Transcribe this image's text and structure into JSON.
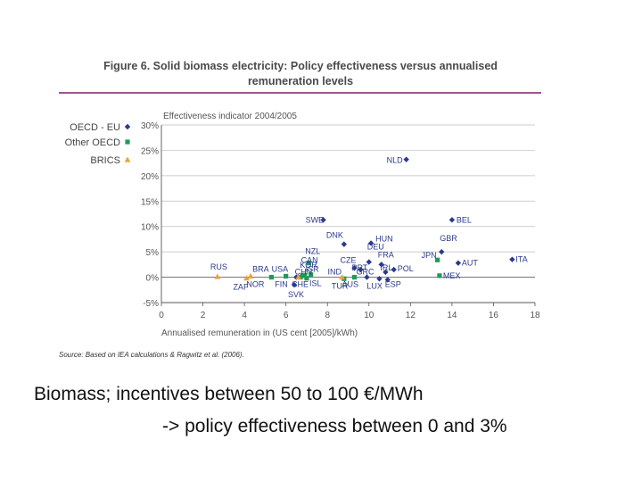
{
  "chart_data": {
    "type": "scatter",
    "title": "Figure 6. Solid biomass electricity: Policy effectiveness versus annualised remuneration levels",
    "title_lines": [
      "Figure 6. Solid biomass electricity: Policy effectiveness versus annualised",
      "remuneration levels"
    ],
    "ylabel": "Effectiveness indicator 2004/2005",
    "xlabel": "Annualised remuneration in (US cent [2005]/kWh)",
    "xlim": [
      0,
      18
    ],
    "ylim": [
      -5,
      30
    ],
    "x_ticks": [
      0,
      2,
      4,
      6,
      8,
      10,
      12,
      14,
      16,
      18
    ],
    "y_ticks": [
      -5,
      0,
      5,
      10,
      15,
      20,
      25,
      30
    ],
    "y_tick_labels": [
      "-5%",
      "0%",
      "5%",
      "10%",
      "15%",
      "20%",
      "25%",
      "30%"
    ],
    "gridlines": "horizontal",
    "legend_position": "left",
    "source": "Source: Based on IEA calculations & Ragwitz et al. (2006).",
    "series": [
      {
        "name": "OECD - EU",
        "color": "#2b3a8c",
        "marker": "diamond",
        "points": [
          {
            "label": "NLD",
            "x": 11.8,
            "y": 23.2
          },
          {
            "label": "SWE",
            "x": 7.8,
            "y": 11.3
          },
          {
            "label": "BEL",
            "x": 14.0,
            "y": 11.3
          },
          {
            "label": "DNK",
            "x": 8.8,
            "y": 6.5
          },
          {
            "label": "HUN",
            "x": 10.1,
            "y": 6.7
          },
          {
            "label": "DEU",
            "x": 10.0,
            "y": 3.0
          },
          {
            "label": "GBR",
            "x": 13.5,
            "y": 5.0
          },
          {
            "label": "AUT",
            "x": 14.3,
            "y": 2.8
          },
          {
            "label": "ITA",
            "x": 16.9,
            "y": 3.5
          },
          {
            "label": "CZE",
            "x": 9.3,
            "y": 1.8
          },
          {
            "label": "FRA",
            "x": 10.6,
            "y": 2.5
          },
          {
            "label": "POL",
            "x": 11.2,
            "y": 1.5
          },
          {
            "label": "IRL",
            "x": 10.8,
            "y": 1.0
          },
          {
            "label": "PRT",
            "x": 9.6,
            "y": 1.5
          },
          {
            "label": "GRC",
            "x": 9.9,
            "y": 0.0
          },
          {
            "label": "SVK",
            "x": 6.4,
            "y": -1.5
          },
          {
            "label": "FIN",
            "x": 6.5,
            "y": 0.0
          },
          {
            "label": "LUX",
            "x": 10.5,
            "y": -0.3
          },
          {
            "label": "ESP",
            "x": 10.9,
            "y": -0.5
          }
        ]
      },
      {
        "name": "Other OECD",
        "color": "#1f9a5a",
        "marker": "square",
        "points": [
          {
            "label": "NZL",
            "x": 7.1,
            "y": 2.8
          },
          {
            "label": "JPN",
            "x": 13.3,
            "y": 3.4
          },
          {
            "label": "USA",
            "x": 6.0,
            "y": 0.2
          },
          {
            "label": "KOR",
            "x": 6.8,
            "y": 0.3
          },
          {
            "label": "CAN",
            "x": 6.9,
            "y": 0.4
          },
          {
            "label": "NOR",
            "x": 5.3,
            "y": 0.0
          },
          {
            "label": "TUR",
            "x": 8.8,
            "y": -0.3
          },
          {
            "label": "ISL",
            "x": 7.0,
            "y": -0.2
          },
          {
            "label": "CHE",
            "x": 6.7,
            "y": 0.0
          },
          {
            "label": "AUS",
            "x": 9.3,
            "y": 0.0
          },
          {
            "label": "MEX",
            "x": 13.4,
            "y": 0.3
          },
          {
            "label": "ISR",
            "x": 7.2,
            "y": 0.5
          }
        ]
      },
      {
        "name": "BRICS",
        "color": "#e8a23c",
        "marker": "triangle",
        "points": [
          {
            "label": "RUS",
            "x": 2.7,
            "y": 0.1
          },
          {
            "label": "BRA",
            "x": 4.3,
            "y": 0.2
          },
          {
            "label": "ZAF",
            "x": 4.1,
            "y": -0.2
          },
          {
            "label": "CHN",
            "x": 6.6,
            "y": 0.0
          },
          {
            "label": "IND",
            "x": 8.7,
            "y": 0.0
          }
        ]
      }
    ]
  },
  "caption": {
    "line1": "Biomass; incentives between 50 to 100 €/MWh",
    "line2": "-> policy effectiveness between 0 and 3%"
  }
}
